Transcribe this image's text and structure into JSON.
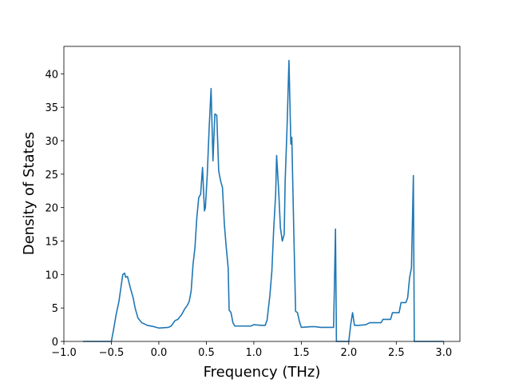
{
  "chart_data": {
    "type": "line",
    "xlabel": "Frequency (THz)",
    "ylabel": "Density of States",
    "x": [
      -0.8,
      -0.5,
      -0.48,
      -0.45,
      -0.42,
      -0.4,
      -0.38,
      -0.36,
      -0.35,
      -0.33,
      -0.3,
      -0.27,
      -0.25,
      -0.22,
      -0.18,
      -0.12,
      -0.05,
      0.0,
      0.1,
      0.13,
      0.17,
      0.2,
      0.24,
      0.27,
      0.3,
      0.32,
      0.34,
      0.36,
      0.38,
      0.4,
      0.42,
      0.44,
      0.46,
      0.48,
      0.49,
      0.51,
      0.53,
      0.55,
      0.57,
      0.59,
      0.61,
      0.63,
      0.65,
      0.67,
      0.69,
      0.71,
      0.73,
      0.74,
      0.76,
      0.78,
      0.8,
      0.9,
      0.97,
      1.0,
      1.08,
      1.12,
      1.14,
      1.17,
      1.19,
      1.21,
      1.23,
      1.24,
      1.26,
      1.28,
      1.3,
      1.32,
      1.33,
      1.35,
      1.37,
      1.39,
      1.4,
      1.42,
      1.44,
      1.46,
      1.48,
      1.5,
      1.6,
      1.65,
      1.7,
      1.8,
      1.84,
      1.86,
      1.87,
      1.95,
      2.0,
      2.02,
      2.04,
      2.06,
      2.1,
      2.18,
      2.22,
      2.3,
      2.34,
      2.36,
      2.44,
      2.46,
      2.53,
      2.55,
      2.6,
      2.62,
      2.64,
      2.66,
      2.68,
      2.69,
      3.0
    ],
    "series": [
      {
        "color": "#1f77b4",
        "values": [
          0,
          0,
          1.5,
          4,
          6,
          8,
          10,
          10.2,
          9.6,
          9.7,
          8,
          6.5,
          5,
          3.5,
          2.8,
          2.4,
          2.2,
          2.0,
          2.1,
          2.3,
          3.1,
          3.3,
          4,
          4.8,
          5.4,
          6,
          7.5,
          11.5,
          14,
          18.5,
          21.5,
          22,
          26,
          19.5,
          20,
          25,
          32,
          37.8,
          27,
          34,
          33.8,
          25.5,
          24,
          23,
          17.5,
          14,
          11,
          4.7,
          4.3,
          2.8,
          2.3,
          2.3,
          2.3,
          2.5,
          2.4,
          2.4,
          3.2,
          7,
          10.5,
          17,
          22,
          27.8,
          23,
          17,
          15,
          16,
          24,
          32,
          42,
          29.5,
          30.5,
          17,
          4.5,
          4.3,
          3,
          2.1,
          2.2,
          2.2,
          2.1,
          2.1,
          2.1,
          16.8,
          0,
          0,
          0,
          2.5,
          4.3,
          2.4,
          2.4,
          2.5,
          2.8,
          2.8,
          2.8,
          3.3,
          3.3,
          4.3,
          4.3,
          5.8,
          5.8,
          6.5,
          9.5,
          11,
          24.8,
          0,
          0
        ]
      }
    ],
    "xlim": [
      -1.0,
      3.17
    ],
    "ylim": [
      0,
      44.1
    ],
    "xticks": [
      {
        "value": -1.0,
        "label": "−1.0"
      },
      {
        "value": -0.5,
        "label": "−0.5"
      },
      {
        "value": 0,
        "label": "0.0"
      },
      {
        "value": 0.5,
        "label": "0.5"
      },
      {
        "value": 1,
        "label": "1.0"
      },
      {
        "value": 1.5,
        "label": "1.5"
      },
      {
        "value": 2,
        "label": "2.0"
      },
      {
        "value": 2.5,
        "label": "2.5"
      },
      {
        "value": 3,
        "label": "3.0"
      }
    ],
    "yticks": [
      0,
      5,
      10,
      15,
      20,
      25,
      30,
      35,
      40
    ]
  }
}
